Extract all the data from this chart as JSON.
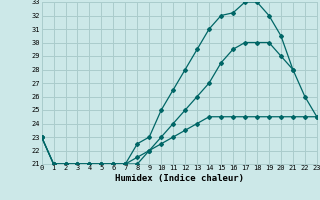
{
  "bg_color": "#cce8e8",
  "grid_color": "#aacccc",
  "line_color": "#006666",
  "xlim": [
    0,
    23
  ],
  "ylim": [
    21,
    33
  ],
  "xtick_vals": [
    0,
    1,
    2,
    3,
    4,
    5,
    6,
    7,
    8,
    9,
    10,
    11,
    12,
    13,
    14,
    15,
    16,
    17,
    18,
    19,
    20,
    21,
    22,
    23
  ],
  "ytick_vals": [
    21,
    22,
    23,
    24,
    25,
    26,
    27,
    28,
    29,
    30,
    31,
    32,
    33
  ],
  "xlabel": "Humidex (Indice chaleur)",
  "line1_x": [
    0,
    1,
    2,
    3,
    4,
    5,
    6,
    7,
    8,
    9,
    10,
    11,
    12,
    13,
    14,
    15,
    16,
    17,
    18,
    19,
    20,
    21,
    22,
    23
  ],
  "line1_y": [
    23,
    21,
    21,
    21,
    21,
    21,
    21,
    21,
    21,
    22,
    22.5,
    23,
    23.5,
    24,
    24.5,
    24.5,
    24.5,
    24.5,
    24.5,
    24.5,
    24.5,
    24.5,
    24.5,
    24.5
  ],
  "line2_x": [
    0,
    1,
    2,
    3,
    4,
    5,
    6,
    7,
    8,
    9,
    10,
    11,
    12,
    13,
    14,
    15,
    16,
    17,
    18,
    19,
    20,
    21,
    22,
    23
  ],
  "line2_y": [
    23,
    21,
    21,
    21,
    21,
    21,
    21,
    21,
    22.5,
    23,
    25,
    26.5,
    28,
    29.5,
    31,
    32,
    32.2,
    33,
    33,
    32,
    30.5,
    28,
    26,
    24.5
  ],
  "line3_x": [
    0,
    1,
    2,
    3,
    4,
    5,
    6,
    7,
    8,
    9,
    10,
    11,
    12,
    13,
    14,
    15,
    16,
    17,
    18,
    19,
    20,
    21,
    22,
    23
  ],
  "line3_y": [
    23,
    21,
    21,
    21,
    21,
    21,
    21,
    21,
    21.5,
    22,
    23,
    24,
    25,
    26,
    27,
    28.5,
    29.5,
    30,
    30,
    30,
    29,
    28,
    null,
    null
  ]
}
